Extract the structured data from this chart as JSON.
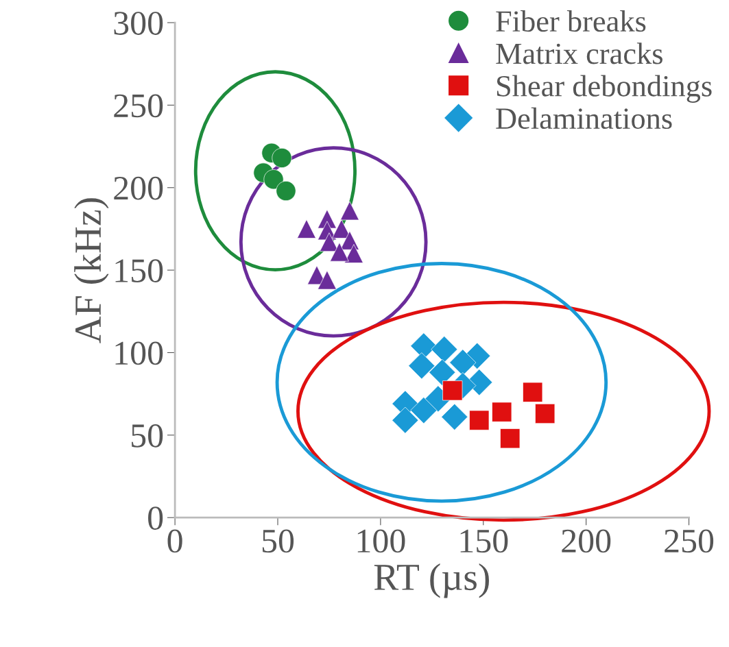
{
  "chart_data": {
    "type": "scatter",
    "xlabel": "RT (µs)",
    "ylabel": "AF (kHz)",
    "xlim": [
      0,
      250
    ],
    "xticks": [
      0,
      50,
      100,
      150,
      200,
      250
    ],
    "ylim": [
      0,
      300
    ],
    "yticks": [
      0,
      50,
      100,
      150,
      200,
      250,
      300
    ],
    "grid": false,
    "legend": "top right",
    "series": [
      {
        "name": "Fiber breaks",
        "color": "#1e8c3c",
        "marker": "circle",
        "x": [
          47,
          52,
          43,
          48,
          54
        ],
        "values": [
          221,
          218,
          209,
          205,
          198
        ]
      },
      {
        "name": "Matrix cracks",
        "color": "#6a2c9a",
        "marker": "triangle",
        "x": [
          64,
          74,
          85,
          74,
          81,
          75,
          85,
          87,
          80,
          69,
          74
        ],
        "values": [
          175,
          181,
          186,
          174,
          175,
          167,
          168,
          160,
          161,
          147,
          144
        ]
      },
      {
        "name": "Shear debondings",
        "color": "#e01010",
        "marker": "square",
        "x": [
          148,
          159,
          163,
          174,
          180,
          135
        ],
        "values": [
          59,
          64,
          48,
          76,
          63,
          77
        ]
      },
      {
        "name": "Delaminations",
        "color": "#1a9ad6",
        "marker": "diamond",
        "x": [
          121,
          131,
          147,
          120,
          140,
          130,
          148,
          140,
          128,
          112,
          112,
          121,
          136
        ],
        "values": [
          104,
          102,
          98,
          92,
          94,
          88,
          82,
          80,
          72,
          69,
          59,
          65,
          61
        ]
      }
    ]
  }
}
